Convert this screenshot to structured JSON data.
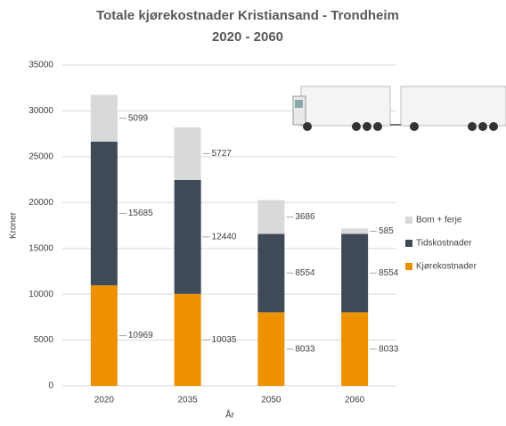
{
  "chart_data": {
    "type": "stacked-bar",
    "title": [
      "Totale kjørekostnader Kristiansand - Trondheim",
      "2020 - 2060"
    ],
    "x_label": "År",
    "y_label": "Kroner",
    "categories": [
      "2020",
      "2035",
      "2050",
      "2060"
    ],
    "series": [
      {
        "name": "Kjørekostnader",
        "color": "#ed9100",
        "values": [
          10969,
          10035,
          8033,
          8033
        ]
      },
      {
        "name": "Tidskostnader",
        "color": "#3e4b57",
        "values": [
          15685,
          12440,
          8554,
          8554
        ]
      },
      {
        "name": "Bom + ferje",
        "color": "#d9d9d9",
        "values": [
          5099,
          5727,
          3686,
          585
        ]
      }
    ],
    "ylim": [
      0,
      35000
    ],
    "yticks": [
      0,
      5000,
      10000,
      15000,
      20000,
      25000,
      30000,
      35000
    ],
    "grid": true,
    "legend": "right"
  }
}
